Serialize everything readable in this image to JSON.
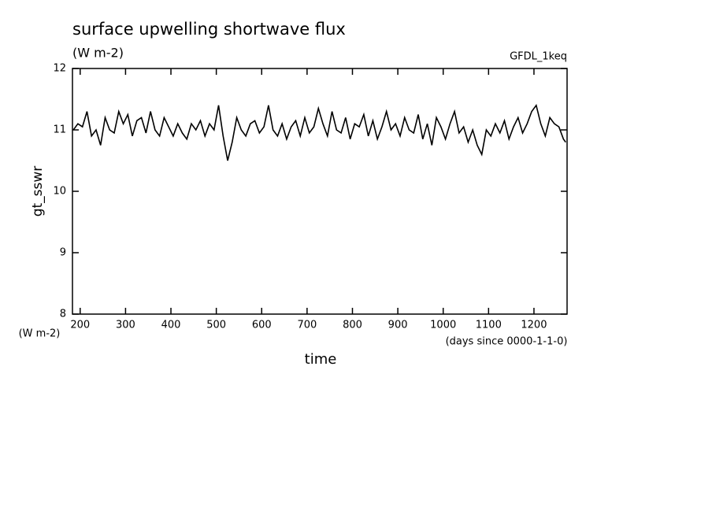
{
  "chart_data": {
    "type": "line",
    "title": "surface upwelling shortwave flux",
    "subtitle": "(W m-2)",
    "annotation": "GFDL_1keq",
    "ylabel": "gt_sswr",
    "yunit": "(W m-2)",
    "xlabel": "time",
    "xunit": "(days since 0000-1-1-0)",
    "xlim": [
      183,
      1273
    ],
    "ylim": [
      8,
      12
    ],
    "xticks": [
      200,
      300,
      400,
      500,
      600,
      700,
      800,
      900,
      1000,
      1100,
      1200
    ],
    "yticks": [
      8,
      9,
      10,
      11,
      12
    ],
    "x": [
      185,
      195,
      205,
      215,
      225,
      235,
      245,
      255,
      265,
      275,
      285,
      295,
      305,
      315,
      325,
      335,
      345,
      355,
      365,
      375,
      385,
      395,
      405,
      415,
      425,
      435,
      445,
      455,
      465,
      475,
      485,
      495,
      505,
      515,
      525,
      535,
      545,
      555,
      565,
      575,
      585,
      595,
      605,
      615,
      625,
      635,
      645,
      655,
      665,
      675,
      685,
      695,
      705,
      715,
      725,
      735,
      745,
      755,
      765,
      775,
      785,
      795,
      805,
      815,
      825,
      835,
      845,
      855,
      865,
      875,
      885,
      895,
      905,
      915,
      925,
      935,
      945,
      955,
      965,
      975,
      985,
      995,
      1005,
      1015,
      1025,
      1035,
      1045,
      1055,
      1065,
      1075,
      1085,
      1095,
      1105,
      1115,
      1125,
      1135,
      1145,
      1155,
      1165,
      1175,
      1185,
      1195,
      1205,
      1215,
      1225,
      1235,
      1245,
      1255,
      1265,
      1270
    ],
    "series": [
      {
        "name": "gt_sswr",
        "color": "#000000",
        "values": [
          11.0,
          11.1,
          11.05,
          11.3,
          10.9,
          11.0,
          10.75,
          11.2,
          11.0,
          10.95,
          11.3,
          11.1,
          11.25,
          10.9,
          11.15,
          11.2,
          10.95,
          11.3,
          11.0,
          10.9,
          11.2,
          11.05,
          10.9,
          11.1,
          10.95,
          10.85,
          11.1,
          11.0,
          11.15,
          10.9,
          11.1,
          11.0,
          11.4,
          10.9,
          10.5,
          10.8,
          11.2,
          11.0,
          10.9,
          11.1,
          11.15,
          10.95,
          11.05,
          11.4,
          11.0,
          10.9,
          11.1,
          10.85,
          11.05,
          11.15,
          10.9,
          11.2,
          10.95,
          11.05,
          11.35,
          11.1,
          10.9,
          11.3,
          11.0,
          10.95,
          11.2,
          10.85,
          11.1,
          11.05,
          11.25,
          10.9,
          11.15,
          10.85,
          11.05,
          11.3,
          11.0,
          11.1,
          10.9,
          11.2,
          11.0,
          10.95,
          11.25,
          10.85,
          11.1,
          10.75,
          11.2,
          11.05,
          10.85,
          11.1,
          11.3,
          10.95,
          11.05,
          10.8,
          11.0,
          10.75,
          10.6,
          11.0,
          10.9,
          11.1,
          10.95,
          11.15,
          10.85,
          11.05,
          11.2,
          10.95,
          11.1,
          11.3,
          11.4,
          11.1,
          10.9,
          11.2,
          11.1,
          11.05,
          10.85,
          10.8
        ]
      }
    ]
  }
}
